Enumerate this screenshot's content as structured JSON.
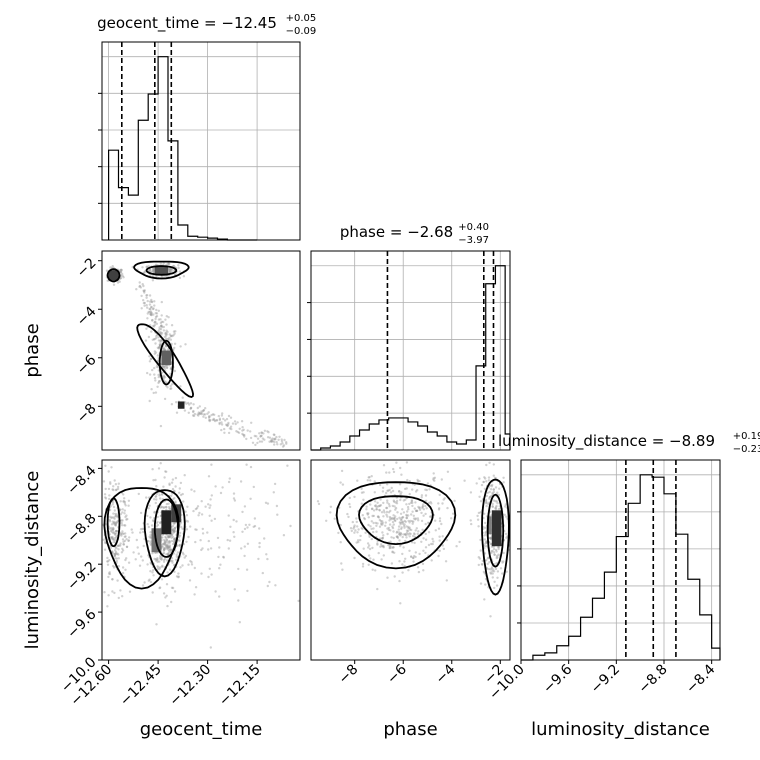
{
  "chart_data": {
    "type": "corner",
    "parameters": [
      {
        "name": "geocent_time",
        "median": "−12.45",
        "plus": "+0.05",
        "minus": "−0.09",
        "title": "geocent_time = −12.45",
        "range": [
          -12.62,
          -12.02
        ],
        "quantiles": [
          -12.56,
          -12.46,
          -12.41
        ],
        "ticks": [
          -12.6,
          -12.45,
          -12.3,
          -12.15
        ],
        "tick_labels": [
          "−12.60",
          "−12.45",
          "−12.30",
          "−12.15"
        ],
        "hist_edges": [
          -12.6,
          -12.57,
          -12.54,
          -12.51,
          -12.48,
          -12.45,
          -12.42,
          -12.39,
          -12.36,
          -12.33,
          -12.3,
          -12.27,
          -12.24,
          -12.21,
          -12.18,
          -12.15
        ],
        "hist_counts": [
          0.48,
          0.28,
          0.24,
          0.64,
          0.78,
          0.98,
          0.53,
          0.08,
          0.02,
          0.015,
          0.01,
          0.005,
          0.0,
          0.0,
          0.0
        ]
      },
      {
        "name": "phase",
        "median": "−2.68",
        "plus": "+0.40",
        "minus": "−3.97",
        "title": "phase = −2.68",
        "range": [
          -9.8,
          -1.6
        ],
        "quantiles": [
          -6.65,
          -2.68,
          -2.28
        ],
        "ticks": [
          -8,
          -6,
          -4,
          -2
        ],
        "tick_labels": [
          "−8",
          "−6",
          "−4",
          "−2"
        ],
        "hist_edges": [
          -9.8,
          -9.4,
          -9.0,
          -8.6,
          -8.2,
          -7.8,
          -7.4,
          -7.0,
          -6.6,
          -6.2,
          -5.8,
          -5.4,
          -5.0,
          -4.6,
          -4.2,
          -3.8,
          -3.4,
          -3.0,
          -2.6,
          -2.2,
          -1.8,
          -1.6
        ],
        "hist_counts": [
          0.0,
          0.01,
          0.02,
          0.04,
          0.07,
          0.1,
          0.13,
          0.15,
          0.16,
          0.16,
          0.14,
          0.12,
          0.09,
          0.07,
          0.04,
          0.03,
          0.05,
          0.42,
          0.83,
          0.92,
          0.08
        ],
        "y_ticks": [
          -8,
          -6,
          -4,
          -2
        ],
        "y_tick_labels": [
          "−8",
          "−6",
          "−4",
          "−2"
        ]
      },
      {
        "name": "luminosity_distance",
        "median": "−8.89",
        "plus": "+0.19",
        "minus": "−0.23",
        "title": "luminosity_distance = −8.89",
        "range": [
          -10.0,
          -8.33
        ],
        "quantiles": [
          -9.12,
          -8.89,
          -8.7
        ],
        "ticks": [
          -10.0,
          -9.6,
          -9.2,
          -8.8,
          -8.4
        ],
        "tick_labels": [
          "−10.0",
          "−9.6",
          "−9.2",
          "−8.8",
          "−8.4"
        ],
        "hist_edges": [
          -10.0,
          -9.9,
          -9.8,
          -9.7,
          -9.6,
          -9.5,
          -9.4,
          -9.3,
          -9.2,
          -9.1,
          -9.0,
          -8.9,
          -8.8,
          -8.7,
          -8.6,
          -8.5,
          -8.4,
          -8.33
        ],
        "hist_counts": [
          0.0,
          0.02,
          0.03,
          0.06,
          0.1,
          0.18,
          0.26,
          0.37,
          0.52,
          0.66,
          0.78,
          0.77,
          0.7,
          0.53,
          0.34,
          0.19,
          0.05
        ],
        "y_ticks": [
          -10.0,
          -9.6,
          -9.2,
          -8.8,
          -8.4
        ],
        "y_tick_labels": [
          "−10.0",
          "−9.6",
          "−9.2",
          "−8.8",
          "−8.4"
        ]
      }
    ],
    "axis_labels": {
      "x": [
        "geocent_time",
        "phase",
        "luminosity_distance"
      ],
      "y": [
        "phase",
        "luminosity_distance"
      ]
    },
    "grid": true,
    "colors": {
      "line": "#000000",
      "grid": "#b0b0b0",
      "samples": "#9a9a9a"
    }
  }
}
